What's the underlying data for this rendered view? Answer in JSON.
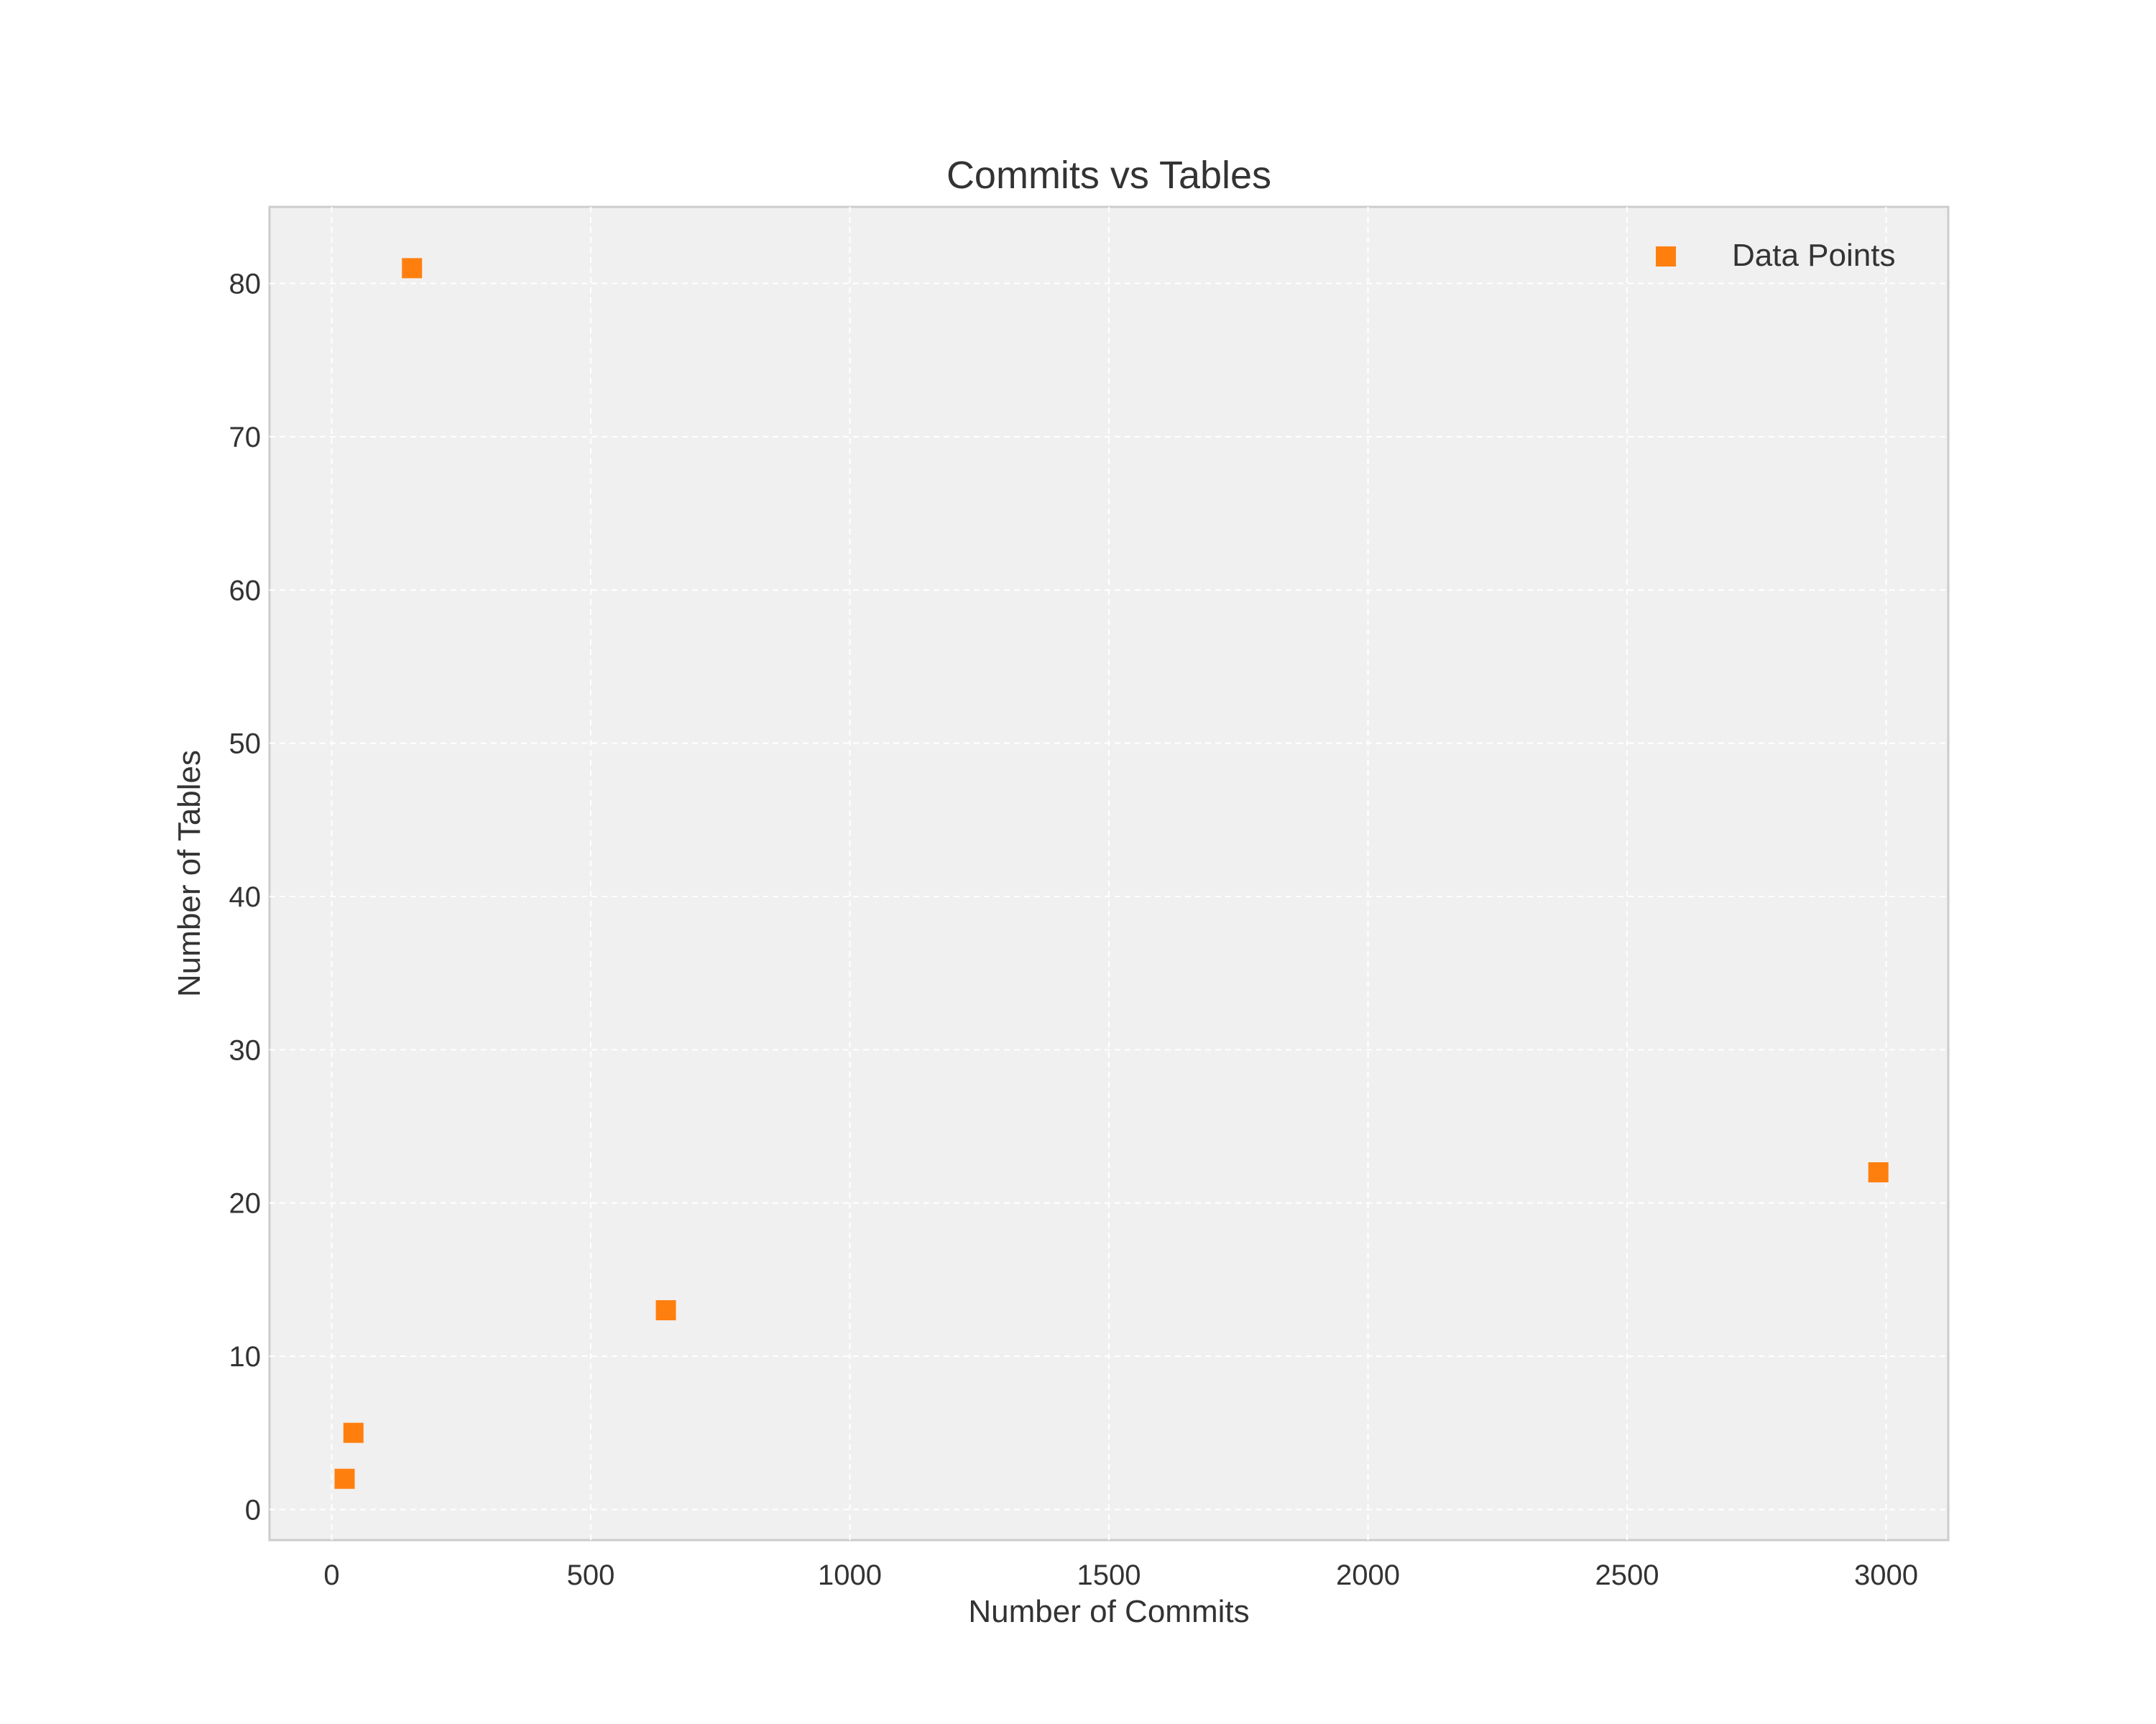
{
  "chart_data": {
    "type": "scatter",
    "title": "Commits vs Tables",
    "xlabel": "Number of Commits",
    "ylabel": "Number of Tables",
    "xlim": [
      -120,
      3120
    ],
    "ylim": [
      -2,
      85
    ],
    "xticks": [
      0,
      500,
      1000,
      1500,
      2000,
      2500,
      3000
    ],
    "yticks": [
      0,
      10,
      20,
      30,
      40,
      50,
      60,
      70,
      80
    ],
    "grid": true,
    "legend": {
      "position": "top-right",
      "entries": [
        "Data Points"
      ]
    },
    "marker": "square",
    "series": [
      {
        "name": "Data Points",
        "color": "#ff7f0e",
        "points": [
          {
            "x": 25,
            "y": 2
          },
          {
            "x": 42,
            "y": 5
          },
          {
            "x": 155,
            "y": 81
          },
          {
            "x": 645,
            "y": 13
          },
          {
            "x": 2985,
            "y": 22
          }
        ]
      }
    ]
  }
}
